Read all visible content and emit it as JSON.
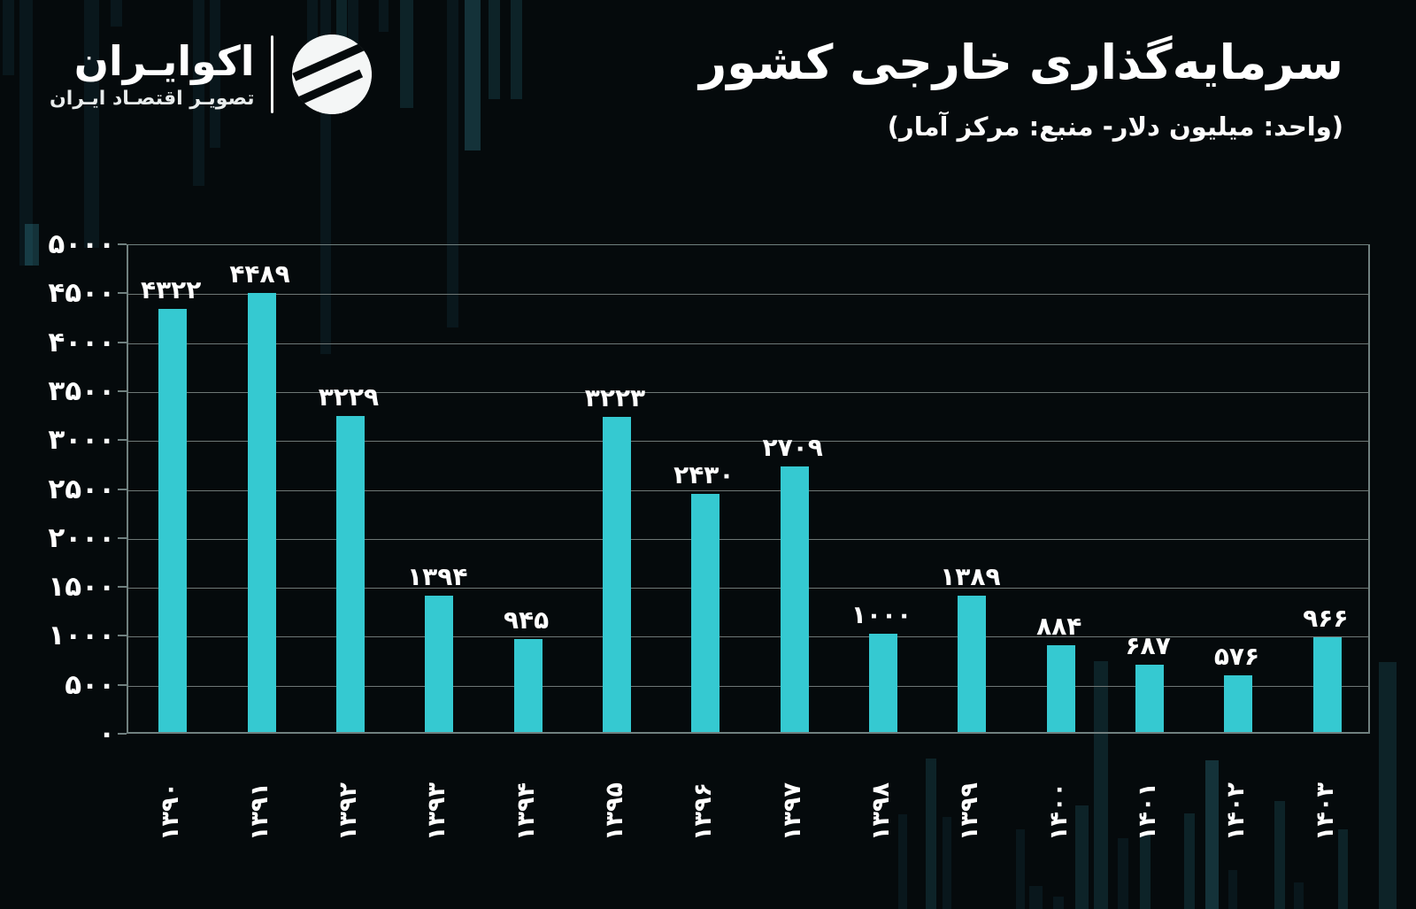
{
  "brand": {
    "name": "اکوایـران",
    "tagline": "تصویـر اقتصـاد ایـران",
    "logo_icon": "ecoiran-circle-wings-logo"
  },
  "header": {
    "title": "سرمایه‌گذاری خارجی کشور",
    "subtitle": "(واحد: میلیون دلار- منبع: مرکز آمار)"
  },
  "chart_data": {
    "type": "bar",
    "title": "سرمایه‌گذاری خارجی کشور",
    "unit_source_note": "(واحد: میلیون دلار- منبع: مرکز آمار)",
    "categories": [
      "۱۳۹۰",
      "۱۳۹۱",
      "۱۳۹۲",
      "۱۳۹۳",
      "۱۳۹۴",
      "۱۳۹۵",
      "۱۳۹۶",
      "۱۳۹۷",
      "۱۳۹۸",
      "۱۳۹۹",
      "۱۴۰۰",
      "۱۴۰۱",
      "۱۴۰۲",
      "۱۴۰۳"
    ],
    "categories_latin": [
      1390,
      1391,
      1392,
      1393,
      1394,
      1395,
      1396,
      1397,
      1398,
      1399,
      1400,
      1401,
      1402,
      1403
    ],
    "values": [
      4322,
      4489,
      3229,
      1394,
      945,
      3223,
      2430,
      2709,
      1000,
      1389,
      884,
      687,
      576,
      966
    ],
    "value_labels": [
      "۴۳۲۲",
      "۴۴۸۹",
      "۳۲۲۹",
      "۱۳۹۴",
      "۹۴۵",
      "۳۲۲۳",
      "۲۴۳۰",
      "۲۷۰۹",
      "۱۰۰۰",
      "۱۳۸۹",
      "۸۸۴",
      "۶۸۷",
      "۵۷۶",
      "۹۶۶"
    ],
    "ylim": [
      0,
      5000
    ],
    "ytick_step": 500,
    "ytick_labels": [
      "۰",
      "۵۰۰",
      "۱۰۰۰",
      "۱۵۰۰",
      "۲۰۰۰",
      "۲۵۰۰",
      "۳۰۰۰",
      "۳۵۰۰",
      "۴۰۰۰",
      "۴۵۰۰",
      "۵۰۰۰"
    ],
    "grid": true,
    "legend": false,
    "bar_color": "#35c9d1"
  },
  "colors": {
    "background": "#050a0c",
    "bar": "#35c9d1",
    "gridline": "#6e7776",
    "text": "#ffffff"
  }
}
